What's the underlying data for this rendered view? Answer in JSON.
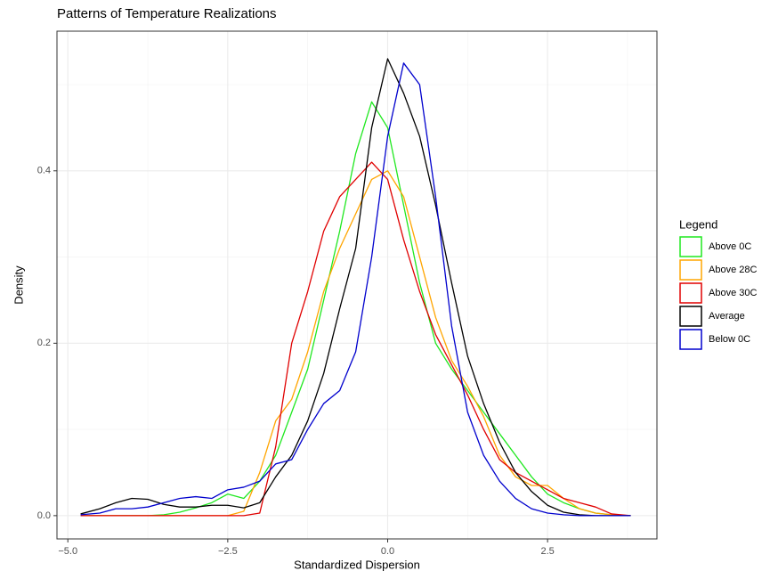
{
  "chart_data": {
    "type": "line",
    "title": "Patterns of Temperature Realizations",
    "x_label": "Standardized Dispersion",
    "y_label": "Density",
    "legend_title": "Legend",
    "legend_position": "right",
    "grid": true,
    "xlim": [
      -5.17,
      4.21
    ],
    "ylim": [
      -0.027,
      0.562
    ],
    "xticks": [
      {
        "value": -5,
        "label": "−5.0"
      },
      {
        "value": -2.5,
        "label": "−2.5"
      },
      {
        "value": 0,
        "label": "0.0"
      },
      {
        "value": 2.5,
        "label": "2.5"
      }
    ],
    "yticks": [
      {
        "value": 0,
        "label": "0.0"
      },
      {
        "value": 0.2,
        "label": "0.2"
      },
      {
        "value": 0.4,
        "label": "0.4"
      }
    ],
    "x_minor_grid": [
      -3.75,
      -1.25,
      1.25,
      3.75
    ],
    "y_minor_grid": [
      0.1,
      0.3,
      0.5
    ],
    "x": [
      -4.8,
      -4.5,
      -4.25,
      -4,
      -3.75,
      -3.5,
      -3.25,
      -3,
      -2.75,
      -2.5,
      -2.25,
      -2,
      -1.75,
      -1.5,
      -1.25,
      -1,
      -0.75,
      -0.5,
      -0.25,
      0,
      0.25,
      0.5,
      0.75,
      1,
      1.25,
      1.5,
      1.75,
      2,
      2.25,
      2.5,
      2.75,
      3,
      3.25,
      3.5,
      3.8
    ],
    "series": [
      {
        "name": "Above 0C",
        "color": "#1fe81f",
        "values": [
          0,
          0,
          0,
          0,
          0,
          0.001,
          0.004,
          0.009,
          0.015,
          0.025,
          0.02,
          0.04,
          0.07,
          0.12,
          0.17,
          0.25,
          0.33,
          0.42,
          0.48,
          0.45,
          0.36,
          0.27,
          0.2,
          0.17,
          0.145,
          0.12,
          0.095,
          0.07,
          0.045,
          0.025,
          0.015,
          0.008,
          0.003,
          0.001,
          0
        ]
      },
      {
        "name": "Above 28C",
        "color": "#ffa500",
        "values": [
          0,
          0,
          0,
          0,
          0,
          0,
          0,
          0,
          0,
          0,
          0.005,
          0.05,
          0.11,
          0.135,
          0.19,
          0.26,
          0.31,
          0.35,
          0.39,
          0.4,
          0.37,
          0.3,
          0.23,
          0.18,
          0.15,
          0.115,
          0.07,
          0.045,
          0.035,
          0.035,
          0.02,
          0.008,
          0.003,
          0.001,
          0
        ]
      },
      {
        "name": "Above 30C",
        "color": "#e00000",
        "values": [
          0,
          0,
          0,
          0,
          0,
          0,
          0,
          0,
          0,
          0,
          0,
          0.003,
          0.08,
          0.2,
          0.26,
          0.33,
          0.37,
          0.39,
          0.41,
          0.39,
          0.32,
          0.26,
          0.21,
          0.175,
          0.14,
          0.1,
          0.065,
          0.05,
          0.04,
          0.03,
          0.02,
          0.015,
          0.01,
          0.002,
          0
        ]
      },
      {
        "name": "Average",
        "color": "#000000",
        "values": [
          0.002,
          0.008,
          0.015,
          0.02,
          0.019,
          0.013,
          0.01,
          0.01,
          0.012,
          0.012,
          0.009,
          0.015,
          0.045,
          0.07,
          0.11,
          0.165,
          0.24,
          0.31,
          0.45,
          0.53,
          0.49,
          0.44,
          0.36,
          0.27,
          0.185,
          0.13,
          0.085,
          0.05,
          0.028,
          0.012,
          0.004,
          0.001,
          0,
          0,
          0
        ]
      },
      {
        "name": "Below 0C",
        "color": "#0000cd",
        "values": [
          0.001,
          0.003,
          0.008,
          0.008,
          0.01,
          0.015,
          0.02,
          0.022,
          0.02,
          0.03,
          0.033,
          0.04,
          0.06,
          0.065,
          0.1,
          0.13,
          0.145,
          0.19,
          0.3,
          0.44,
          0.525,
          0.5,
          0.37,
          0.22,
          0.12,
          0.07,
          0.04,
          0.02,
          0.008,
          0.003,
          0.001,
          0,
          0,
          0,
          0
        ]
      }
    ]
  }
}
